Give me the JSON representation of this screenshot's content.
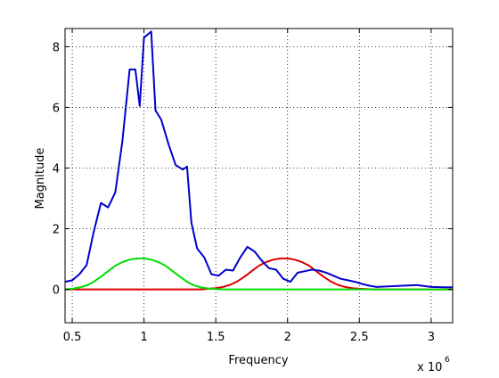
{
  "chart_data": {
    "type": "line",
    "title": "",
    "xlabel": "Frequency",
    "ylabel": "Magnitude",
    "x_multiplier_label": "x 10",
    "x_multiplier_exponent": "6",
    "xlim": [
      0.45,
      3.15
    ],
    "ylim": [
      -1.1,
      8.6
    ],
    "x_ticks": [
      0.5,
      1,
      1.5,
      2,
      2.5,
      3
    ],
    "x_tick_labels": [
      "0.5",
      "1",
      "1.5",
      "2",
      "2.5",
      "3"
    ],
    "y_ticks": [
      0,
      2,
      4,
      6,
      8
    ],
    "y_tick_labels": [
      "0",
      "2",
      "4",
      "6",
      "8"
    ],
    "grid": "dotted",
    "legend": "none",
    "series": [
      {
        "color": "#0000cc",
        "x": [
          0.45,
          0.5,
          0.55,
          0.6,
          0.65,
          0.7,
          0.75,
          0.8,
          0.85,
          0.9,
          0.94,
          0.97,
          1.0,
          1.05,
          1.08,
          1.12,
          1.17,
          1.22,
          1.27,
          1.3,
          1.33,
          1.37,
          1.42,
          1.47,
          1.52,
          1.57,
          1.62,
          1.67,
          1.72,
          1.77,
          1.82,
          1.87,
          1.92,
          1.97,
          2.02,
          2.07,
          2.12,
          2.17,
          2.22,
          2.27,
          2.32,
          2.37,
          2.42,
          2.47,
          2.52,
          2.57,
          2.62,
          2.7,
          2.8,
          2.9,
          3.0,
          3.1,
          3.15
        ],
        "values": [
          0.25,
          0.3,
          0.5,
          0.8,
          1.9,
          2.85,
          2.7,
          3.2,
          4.9,
          7.25,
          7.25,
          6.05,
          8.3,
          8.5,
          5.9,
          5.6,
          4.8,
          4.1,
          3.95,
          4.05,
          2.2,
          1.35,
          1.05,
          0.5,
          0.45,
          0.65,
          0.62,
          1.05,
          1.4,
          1.25,
          0.95,
          0.7,
          0.65,
          0.35,
          0.25,
          0.55,
          0.6,
          0.65,
          0.62,
          0.55,
          0.45,
          0.35,
          0.3,
          0.25,
          0.18,
          0.12,
          0.08,
          0.1,
          0.12,
          0.14,
          0.08,
          0.07,
          0.07
        ]
      },
      {
        "color": "#00dd00",
        "x": [
          0.45,
          0.5,
          0.55,
          0.6,
          0.65,
          0.7,
          0.75,
          0.8,
          0.85,
          0.9,
          0.95,
          1.0,
          1.05,
          1.1,
          1.15,
          1.2,
          1.25,
          1.3,
          1.35,
          1.4,
          1.45,
          1.5,
          1.55,
          1.6,
          1.7,
          1.8,
          2.0,
          2.5,
          3.15
        ],
        "values": [
          0.0,
          0.02,
          0.06,
          0.13,
          0.25,
          0.42,
          0.6,
          0.78,
          0.9,
          0.98,
          1.02,
          1.02,
          0.98,
          0.9,
          0.78,
          0.6,
          0.42,
          0.25,
          0.13,
          0.06,
          0.03,
          0.01,
          0.0,
          0.0,
          0.0,
          0.0,
          0.0,
          0.0,
          0.0
        ]
      },
      {
        "color": "#dd0000",
        "x": [
          0.45,
          1.0,
          1.4,
          1.45,
          1.5,
          1.55,
          1.6,
          1.65,
          1.7,
          1.75,
          1.8,
          1.85,
          1.9,
          1.95,
          2.0,
          2.05,
          2.1,
          2.15,
          2.2,
          2.25,
          2.3,
          2.35,
          2.4,
          2.45,
          2.5,
          2.55,
          2.6,
          3.15
        ],
        "values": [
          0.0,
          0.0,
          0.0,
          0.02,
          0.04,
          0.08,
          0.15,
          0.26,
          0.42,
          0.6,
          0.78,
          0.9,
          0.98,
          1.02,
          1.02,
          0.98,
          0.9,
          0.78,
          0.6,
          0.42,
          0.26,
          0.15,
          0.08,
          0.04,
          0.02,
          0.01,
          0.0,
          0.0
        ]
      }
    ]
  }
}
